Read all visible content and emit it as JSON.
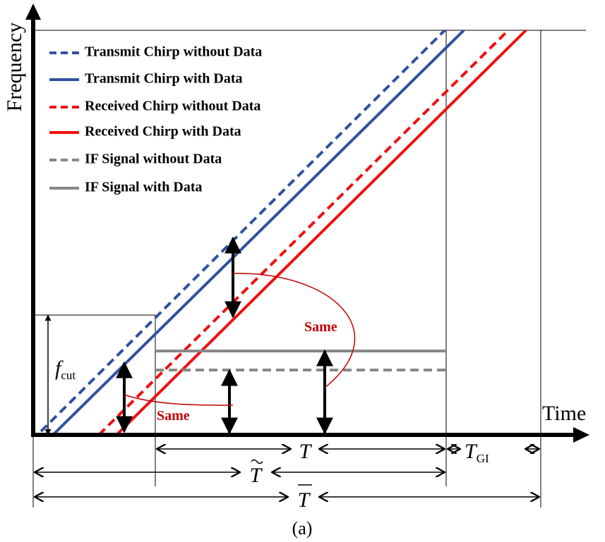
{
  "axes": {
    "y_label": "Frequency",
    "x_label": "Time"
  },
  "legend": [
    {
      "label": "Transmit Chirp without Data"
    },
    {
      "label": "Transmit Chirp with Data"
    },
    {
      "label": "Received Chirp without Data"
    },
    {
      "label": "Received Chirp with Data"
    },
    {
      "label": "IF Signal without Data"
    },
    {
      "label": "IF Signal with Data"
    }
  ],
  "annotations": {
    "same_top": "Same",
    "same_bottom": "Same"
  },
  "symbols": {
    "f_cut": {
      "base": "f",
      "sub": "cut"
    },
    "T": "T",
    "T_tilde": "T",
    "T_bar": "T",
    "T_GI": {
      "base": "T",
      "sub": "GI"
    }
  },
  "caption": "(a)"
}
